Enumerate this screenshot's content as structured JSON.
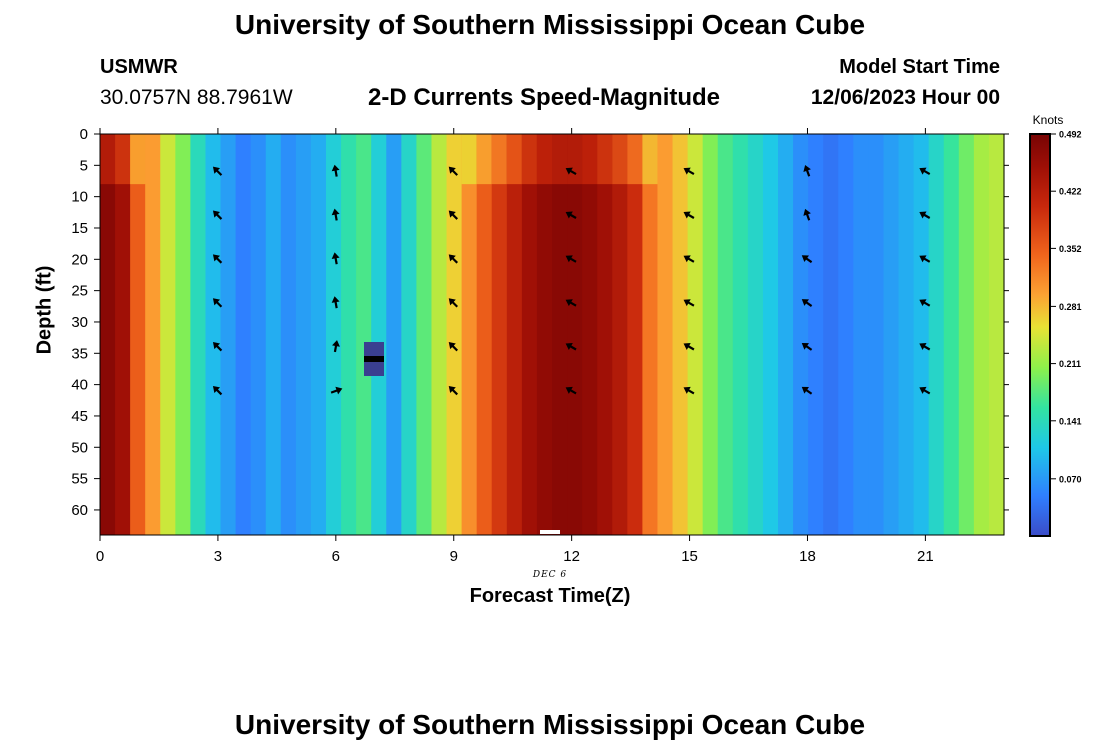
{
  "header": {
    "title": "University of Southern Mississippi Ocean Cube",
    "station": "USMWR",
    "coords": "30.0757N  88.7961W",
    "subtitle": "2-D Currents Speed-Magnitude",
    "model_start_label": "Model Start Time",
    "model_start_value": "12/06/2023 Hour 00"
  },
  "footer": {
    "title": "University of Southern Mississippi Ocean Cube"
  },
  "chart_data": {
    "type": "heatmap",
    "title": "2-D Currents Speed-Magnitude",
    "xlabel": "Forecast Time(Z)",
    "ylabel": "Depth (ft)",
    "x_date_label": "DEC 6",
    "xlim": [
      0,
      23
    ],
    "ylim": [
      0,
      64
    ],
    "x_ticks": [
      0,
      3,
      6,
      9,
      12,
      15,
      18,
      21
    ],
    "y_ticks": [
      0,
      5,
      10,
      15,
      20,
      25,
      30,
      35,
      40,
      45,
      50,
      55,
      60
    ],
    "colorbar": {
      "label": "Knots",
      "min": 0,
      "max": 0.492,
      "ticks": [
        "0.070",
        "0.141",
        "0.211",
        "0.281",
        "0.352",
        "0.422",
        "0.492"
      ]
    },
    "speed_by_half_hour_knots": [
      0.47,
      0.44,
      0.35,
      0.3,
      0.23,
      0.19,
      0.13,
      0.09,
      0.07,
      0.05,
      0.06,
      0.08,
      0.06,
      0.07,
      0.08,
      0.11,
      0.14,
      0.16,
      0.11,
      0.07,
      0.12,
      0.17,
      0.22,
      0.26,
      0.31,
      0.35,
      0.38,
      0.41,
      0.44,
      0.46,
      0.47,
      0.47,
      0.46,
      0.44,
      0.42,
      0.39,
      0.33,
      0.3,
      0.27,
      0.23,
      0.19,
      0.16,
      0.14,
      0.12,
      0.1,
      0.08,
      0.06,
      0.05,
      0.04,
      0.05,
      0.06,
      0.06,
      0.07,
      0.08,
      0.09,
      0.12,
      0.15,
      0.18,
      0.21,
      0.22
    ],
    "arrows": [
      {
        "hour": 3,
        "depths_ft": [
          6,
          13,
          20,
          27,
          34,
          41
        ],
        "direction_deg": 315
      },
      {
        "hour": 6,
        "depths_ft": [
          6,
          13,
          20,
          27
        ],
        "direction_deg": 350
      },
      {
        "hour": 6,
        "depths_ft": [
          34
        ],
        "direction_deg": 10
      },
      {
        "hour": 6,
        "depths_ft": [
          41
        ],
        "direction_deg": 70
      },
      {
        "hour": 9,
        "depths_ft": [
          6,
          13,
          20,
          27,
          34,
          41
        ],
        "direction_deg": 315
      },
      {
        "hour": 12,
        "depths_ft": [
          6,
          13,
          20,
          27,
          34,
          41
        ],
        "direction_deg": 300
      },
      {
        "hour": 15,
        "depths_ft": [
          6,
          13,
          20,
          27,
          34,
          41
        ],
        "direction_deg": 300
      },
      {
        "hour": 18,
        "depths_ft": [
          6,
          13
        ],
        "direction_deg": 340
      },
      {
        "hour": 18,
        "depths_ft": [
          20,
          27,
          34,
          41
        ],
        "direction_deg": 305
      },
      {
        "hour": 21,
        "depths_ft": [
          6,
          13,
          20,
          27,
          34,
          41
        ],
        "direction_deg": 300
      }
    ],
    "colors": {
      "scale": [
        "#3b4cc8",
        "#2f7fff",
        "#1ec8e8",
        "#33e3a0",
        "#8ef04a",
        "#e8e234",
        "#fca233",
        "#f0641c",
        "#c8280c",
        "#9e0f06",
        "#780404"
      ]
    }
  }
}
